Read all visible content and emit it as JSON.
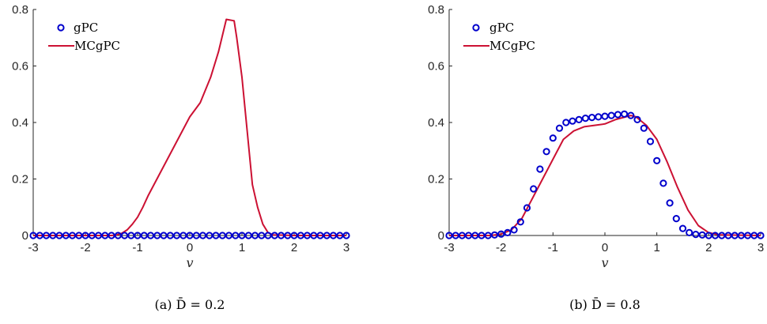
{
  "colors": {
    "gpc": "#0000cc",
    "mcgpc": "#cc1133",
    "axis": "#262626"
  },
  "chart_data": [
    {
      "type": "line",
      "caption": "(a)  D̄ = 0.2",
      "xlabel": "v",
      "ylabel": "",
      "xlim": [
        -3,
        3
      ],
      "ylim": [
        0,
        0.8
      ],
      "xticks": [
        "-3",
        "-2",
        "-1",
        "0",
        "1",
        "2",
        "3"
      ],
      "yticks": [
        "0",
        "0.2",
        "0.4",
        "0.6",
        "0.8"
      ],
      "legend_position": "top-left",
      "series": [
        {
          "name": "gPC",
          "style": "markers",
          "x": [
            -3.0,
            -2.875,
            -2.75,
            -2.625,
            -2.5,
            -2.375,
            -2.25,
            -2.125,
            -2.0,
            -1.875,
            -1.75,
            -1.625,
            -1.5,
            -1.375,
            -1.25,
            -1.125,
            -1.0,
            -0.875,
            -0.75,
            -0.625,
            -0.5,
            -0.375,
            -0.25,
            -0.125,
            0.0,
            0.125,
            0.25,
            0.375,
            0.5,
            0.625,
            0.75,
            0.875,
            1.0,
            1.125,
            1.25,
            1.375,
            1.5,
            1.625,
            1.75,
            1.875,
            2.0,
            2.125,
            2.25,
            2.375,
            2.5,
            2.625,
            2.75,
            2.875,
            3.0
          ],
          "y": [
            0,
            0,
            0,
            0,
            0,
            0,
            0,
            0,
            0,
            0,
            0,
            0,
            0,
            0,
            0,
            0,
            0,
            0,
            0,
            0,
            0,
            0,
            0,
            0,
            0,
            0,
            0,
            0,
            0,
            0,
            0,
            0,
            0,
            0,
            0,
            0,
            0,
            0,
            0,
            0,
            0,
            0,
            0,
            0,
            0,
            0,
            0,
            0,
            0
          ]
        },
        {
          "name": "MCgPC",
          "style": "line",
          "x": [
            -3.0,
            -2.0,
            -1.5,
            -1.4,
            -1.3,
            -1.2,
            -1.1,
            -1.0,
            -0.9,
            -0.8,
            -0.6,
            -0.4,
            -0.2,
            0.0,
            0.2,
            0.4,
            0.55,
            0.7,
            0.85,
            0.9,
            1.0,
            1.1,
            1.2,
            1.3,
            1.4,
            1.5,
            1.6,
            2.0,
            3.0
          ],
          "y": [
            0,
            0,
            0,
            0.002,
            0.008,
            0.02,
            0.04,
            0.065,
            0.1,
            0.14,
            0.21,
            0.28,
            0.35,
            0.42,
            0.47,
            0.56,
            0.65,
            0.765,
            0.76,
            0.7,
            0.56,
            0.37,
            0.18,
            0.1,
            0.04,
            0.01,
            0.002,
            0,
            0
          ]
        }
      ]
    },
    {
      "type": "line",
      "caption": "(b)  D̄ = 0.8",
      "xlabel": "v",
      "ylabel": "",
      "xlim": [
        -3,
        3
      ],
      "ylim": [
        0,
        0.8
      ],
      "xticks": [
        "-3",
        "-2",
        "-1",
        "0",
        "1",
        "2",
        "3"
      ],
      "yticks": [
        "0",
        "0.2",
        "0.4",
        "0.6",
        "0.8"
      ],
      "legend_position": "top-left",
      "series": [
        {
          "name": "gPC",
          "style": "markers",
          "x": [
            -3.0,
            -2.875,
            -2.75,
            -2.625,
            -2.5,
            -2.375,
            -2.25,
            -2.125,
            -2.0,
            -1.875,
            -1.75,
            -1.625,
            -1.5,
            -1.375,
            -1.25,
            -1.125,
            -1.0,
            -0.875,
            -0.75,
            -0.625,
            -0.5,
            -0.375,
            -0.25,
            -0.125,
            0.0,
            0.125,
            0.25,
            0.375,
            0.5,
            0.625,
            0.75,
            0.875,
            1.0,
            1.125,
            1.25,
            1.375,
            1.5,
            1.625,
            1.75,
            1.875,
            2.0,
            2.125,
            2.25,
            2.375,
            2.5,
            2.625,
            2.75,
            2.875,
            3.0
          ],
          "y": [
            0,
            0,
            0,
            0,
            0,
            0,
            0,
            0.002,
            0.005,
            0.01,
            0.02,
            0.048,
            0.098,
            0.165,
            0.235,
            0.297,
            0.345,
            0.38,
            0.4,
            0.405,
            0.41,
            0.415,
            0.418,
            0.42,
            0.422,
            0.425,
            0.428,
            0.43,
            0.425,
            0.41,
            0.38,
            0.333,
            0.265,
            0.185,
            0.115,
            0.06,
            0.025,
            0.01,
            0.004,
            0.002,
            0,
            0,
            0,
            0,
            0,
            0,
            0,
            0,
            0
          ]
        },
        {
          "name": "MCgPC",
          "style": "line",
          "x": [
            -3.0,
            -2.2,
            -2.0,
            -1.8,
            -1.6,
            -1.4,
            -1.2,
            -1.0,
            -0.8,
            -0.6,
            -0.4,
            -0.2,
            0.0,
            0.2,
            0.4,
            0.5,
            0.6,
            0.8,
            1.0,
            1.2,
            1.4,
            1.6,
            1.8,
            2.0,
            2.2,
            3.0
          ],
          "y": [
            0,
            0,
            0.005,
            0.02,
            0.06,
            0.13,
            0.2,
            0.27,
            0.34,
            0.37,
            0.385,
            0.39,
            0.395,
            0.41,
            0.42,
            0.425,
            0.42,
            0.39,
            0.34,
            0.26,
            0.17,
            0.09,
            0.035,
            0.01,
            0.002,
            0
          ]
        }
      ]
    }
  ]
}
